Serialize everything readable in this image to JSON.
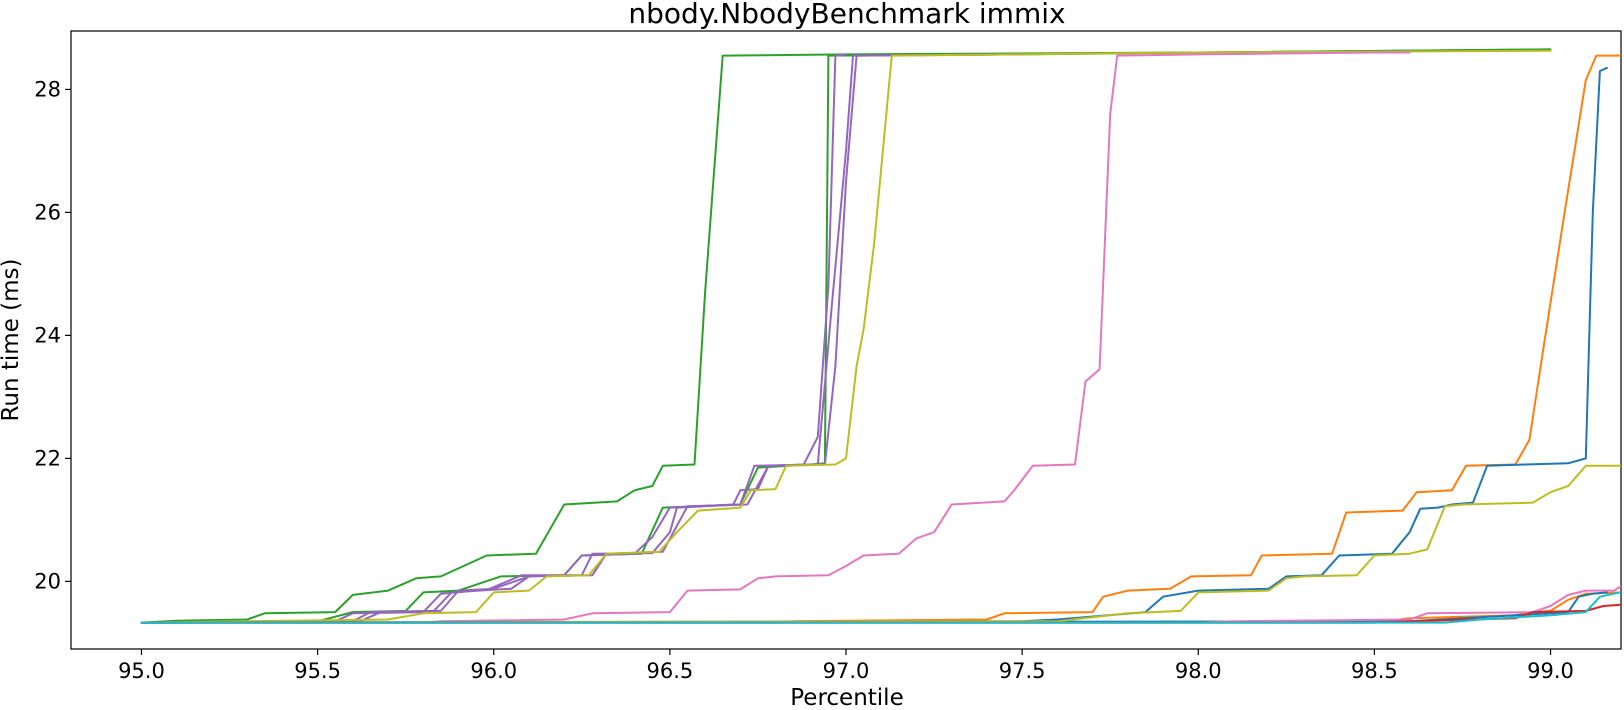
{
  "chart_data": {
    "type": "line",
    "title": "nbody.NbodyBenchmark immix",
    "xlabel": "Percentile",
    "ylabel": "Run time (ms)",
    "xlim": [
      94.8,
      99.2
    ],
    "ylim": [
      18.9,
      28.95
    ],
    "xticks": [
      95.0,
      95.5,
      96.0,
      96.5,
      97.0,
      97.5,
      98.0,
      98.5,
      99.0
    ],
    "xtick_labels": [
      "95.0",
      "95.5",
      "96.0",
      "96.5",
      "97.0",
      "97.5",
      "98.0",
      "98.5",
      "99.0"
    ],
    "yticks": [
      20,
      22,
      24,
      26,
      28
    ],
    "ytick_labels": [
      "20",
      "22",
      "24",
      "26",
      "28"
    ],
    "grid": false,
    "legend": "none",
    "series": [
      {
        "color": "#2ca02c",
        "points": [
          [
            95.0,
            19.33
          ],
          [
            95.1,
            19.36
          ],
          [
            95.3,
            19.38
          ],
          [
            95.35,
            19.48
          ],
          [
            95.55,
            19.5
          ],
          [
            95.6,
            19.78
          ],
          [
            95.7,
            19.85
          ],
          [
            95.78,
            20.05
          ],
          [
            95.85,
            20.08
          ],
          [
            95.98,
            20.42
          ],
          [
            96.12,
            20.45
          ],
          [
            96.15,
            20.75
          ],
          [
            96.2,
            21.25
          ],
          [
            96.35,
            21.3
          ],
          [
            96.4,
            21.48
          ],
          [
            96.45,
            21.55
          ],
          [
            96.48,
            21.88
          ],
          [
            96.57,
            21.9
          ],
          [
            96.6,
            24.7
          ],
          [
            96.65,
            28.55
          ],
          [
            97.0,
            28.57
          ],
          [
            98.0,
            28.6
          ],
          [
            99.0,
            28.65
          ]
        ]
      },
      {
        "color": "#2ca02c",
        "points": [
          [
            95.0,
            19.33
          ],
          [
            95.5,
            19.35
          ],
          [
            95.6,
            19.5
          ],
          [
            95.75,
            19.52
          ],
          [
            95.8,
            19.82
          ],
          [
            95.9,
            19.85
          ],
          [
            96.02,
            20.08
          ],
          [
            96.2,
            20.1
          ],
          [
            96.25,
            20.42
          ],
          [
            96.42,
            20.45
          ],
          [
            96.48,
            21.2
          ],
          [
            96.7,
            21.25
          ],
          [
            96.75,
            21.85
          ],
          [
            96.9,
            21.9
          ],
          [
            96.94,
            21.92
          ],
          [
            96.95,
            28.55
          ],
          [
            97.5,
            28.57
          ],
          [
            98.0,
            28.6
          ],
          [
            99.0,
            28.65
          ]
        ]
      },
      {
        "color": "#9467bd",
        "points": [
          [
            95.0,
            19.33
          ],
          [
            95.55,
            19.35
          ],
          [
            95.6,
            19.48
          ],
          [
            95.8,
            19.5
          ],
          [
            95.85,
            19.8
          ],
          [
            95.95,
            19.85
          ],
          [
            96.05,
            19.88
          ],
          [
            96.1,
            20.08
          ],
          [
            96.2,
            20.1
          ],
          [
            96.25,
            20.42
          ],
          [
            96.4,
            20.45
          ],
          [
            96.45,
            20.72
          ],
          [
            96.5,
            21.2
          ],
          [
            96.68,
            21.25
          ],
          [
            96.7,
            21.48
          ],
          [
            96.75,
            21.5
          ],
          [
            96.78,
            21.88
          ],
          [
            96.88,
            21.9
          ],
          [
            96.92,
            22.35
          ],
          [
            96.95,
            24.8
          ],
          [
            96.97,
            28.55
          ],
          [
            97.0,
            28.57
          ]
        ]
      },
      {
        "color": "#9467bd",
        "points": [
          [
            95.0,
            19.33
          ],
          [
            95.6,
            19.35
          ],
          [
            95.65,
            19.5
          ],
          [
            95.83,
            19.52
          ],
          [
            95.88,
            19.82
          ],
          [
            95.98,
            19.86
          ],
          [
            96.08,
            20.1
          ],
          [
            96.25,
            20.1
          ],
          [
            96.28,
            20.45
          ],
          [
            96.45,
            20.46
          ],
          [
            96.5,
            20.8
          ],
          [
            96.52,
            21.2
          ],
          [
            96.7,
            21.25
          ],
          [
            96.74,
            21.88
          ],
          [
            96.92,
            21.9
          ],
          [
            96.96,
            24.5
          ],
          [
            97.0,
            27.0
          ],
          [
            97.02,
            28.55
          ],
          [
            97.5,
            28.57
          ]
        ]
      },
      {
        "color": "#9467bd",
        "points": [
          [
            95.0,
            19.33
          ],
          [
            95.62,
            19.35
          ],
          [
            95.68,
            19.5
          ],
          [
            95.85,
            19.52
          ],
          [
            95.9,
            19.85
          ],
          [
            96.0,
            19.88
          ],
          [
            96.1,
            20.08
          ],
          [
            96.28,
            20.1
          ],
          [
            96.32,
            20.45
          ],
          [
            96.48,
            20.48
          ],
          [
            96.55,
            21.22
          ],
          [
            96.72,
            21.25
          ],
          [
            96.78,
            21.88
          ],
          [
            96.94,
            21.9
          ],
          [
            96.97,
            23.5
          ],
          [
            97.0,
            26.5
          ],
          [
            97.03,
            28.55
          ],
          [
            97.5,
            28.57
          ]
        ]
      },
      {
        "color": "#bcbd22",
        "points": [
          [
            95.0,
            19.33
          ],
          [
            95.7,
            19.38
          ],
          [
            95.8,
            19.48
          ],
          [
            95.95,
            19.5
          ],
          [
            96.0,
            19.82
          ],
          [
            96.1,
            19.85
          ],
          [
            96.15,
            20.08
          ],
          [
            96.27,
            20.1
          ],
          [
            96.32,
            20.45
          ],
          [
            96.47,
            20.48
          ],
          [
            96.52,
            20.8
          ],
          [
            96.58,
            21.15
          ],
          [
            96.7,
            21.2
          ],
          [
            96.73,
            21.48
          ],
          [
            96.8,
            21.5
          ],
          [
            96.83,
            21.88
          ],
          [
            96.97,
            21.9
          ],
          [
            97.0,
            22.0
          ],
          [
            97.03,
            23.5
          ],
          [
            97.05,
            24.1
          ],
          [
            97.08,
            25.5
          ],
          [
            97.13,
            28.55
          ],
          [
            98.0,
            28.6
          ],
          [
            99.0,
            28.63
          ]
        ]
      },
      {
        "color": "#e377c2",
        "points": [
          [
            95.0,
            19.33
          ],
          [
            95.8,
            19.33
          ],
          [
            95.85,
            19.35
          ],
          [
            96.2,
            19.38
          ],
          [
            96.28,
            19.48
          ],
          [
            96.5,
            19.5
          ],
          [
            96.55,
            19.85
          ],
          [
            96.7,
            19.87
          ],
          [
            96.75,
            20.05
          ],
          [
            96.8,
            20.08
          ],
          [
            96.95,
            20.1
          ],
          [
            97.0,
            20.25
          ],
          [
            97.05,
            20.42
          ],
          [
            97.15,
            20.45
          ],
          [
            97.2,
            20.7
          ],
          [
            97.25,
            20.8
          ],
          [
            97.3,
            21.25
          ],
          [
            97.45,
            21.3
          ],
          [
            97.48,
            21.5
          ],
          [
            97.53,
            21.88
          ],
          [
            97.65,
            21.9
          ],
          [
            97.68,
            23.25
          ],
          [
            97.72,
            23.45
          ],
          [
            97.75,
            27.6
          ],
          [
            97.77,
            28.55
          ],
          [
            98.0,
            28.57
          ],
          [
            98.5,
            28.6
          ],
          [
            98.6,
            28.6
          ]
        ]
      },
      {
        "color": "#ff7f0e",
        "points": [
          [
            95.0,
            19.33
          ],
          [
            96.8,
            19.33
          ],
          [
            96.85,
            19.35
          ],
          [
            97.4,
            19.38
          ],
          [
            97.45,
            19.48
          ],
          [
            97.7,
            19.5
          ],
          [
            97.73,
            19.75
          ],
          [
            97.8,
            19.85
          ],
          [
            97.92,
            19.88
          ],
          [
            97.98,
            20.08
          ],
          [
            98.15,
            20.1
          ],
          [
            98.18,
            20.42
          ],
          [
            98.38,
            20.45
          ],
          [
            98.42,
            21.12
          ],
          [
            98.58,
            21.15
          ],
          [
            98.62,
            21.45
          ],
          [
            98.72,
            21.48
          ],
          [
            98.76,
            21.88
          ],
          [
            98.9,
            21.9
          ],
          [
            98.94,
            22.3
          ],
          [
            98.98,
            23.8
          ],
          [
            99.04,
            26.0
          ],
          [
            99.1,
            28.15
          ],
          [
            99.13,
            28.55
          ],
          [
            99.2,
            28.55
          ]
        ]
      },
      {
        "color": "#ff7f0e",
        "points": [
          [
            95.0,
            19.33
          ],
          [
            98.5,
            19.33
          ],
          [
            98.6,
            19.4
          ],
          [
            98.9,
            19.45
          ],
          [
            98.95,
            19.5
          ],
          [
            99.0,
            19.52
          ],
          [
            99.05,
            19.7
          ],
          [
            99.1,
            19.8
          ],
          [
            99.2,
            19.82
          ]
        ]
      },
      {
        "color": "#1f77b4",
        "points": [
          [
            95.0,
            19.33
          ],
          [
            97.5,
            19.35
          ],
          [
            97.6,
            19.38
          ],
          [
            97.85,
            19.5
          ],
          [
            97.9,
            19.75
          ],
          [
            98.0,
            19.85
          ],
          [
            98.2,
            19.88
          ],
          [
            98.25,
            20.08
          ],
          [
            98.35,
            20.1
          ],
          [
            98.4,
            20.42
          ],
          [
            98.55,
            20.45
          ],
          [
            98.6,
            20.8
          ],
          [
            98.63,
            21.18
          ],
          [
            98.68,
            21.2
          ],
          [
            98.72,
            21.25
          ],
          [
            98.78,
            21.28
          ],
          [
            98.82,
            21.88
          ],
          [
            98.93,
            21.9
          ],
          [
            99.05,
            21.92
          ],
          [
            99.1,
            22.0
          ],
          [
            99.12,
            26.0
          ],
          [
            99.14,
            28.3
          ],
          [
            99.16,
            28.35
          ]
        ]
      },
      {
        "color": "#1f77b4",
        "points": [
          [
            95.0,
            19.33
          ],
          [
            98.6,
            19.35
          ],
          [
            98.9,
            19.45
          ],
          [
            99.05,
            19.5
          ],
          [
            99.08,
            19.75
          ],
          [
            99.12,
            19.8
          ],
          [
            99.16,
            19.82
          ]
        ]
      },
      {
        "color": "#bcbd22",
        "points": [
          [
            95.0,
            19.33
          ],
          [
            97.6,
            19.35
          ],
          [
            97.8,
            19.48
          ],
          [
            97.95,
            19.52
          ],
          [
            98.0,
            19.82
          ],
          [
            98.2,
            19.85
          ],
          [
            98.25,
            20.05
          ],
          [
            98.3,
            20.08
          ],
          [
            98.45,
            20.1
          ],
          [
            98.5,
            20.42
          ],
          [
            98.6,
            20.45
          ],
          [
            98.65,
            20.52
          ],
          [
            98.7,
            21.22
          ],
          [
            98.75,
            21.25
          ],
          [
            98.95,
            21.28
          ],
          [
            99.0,
            21.45
          ],
          [
            99.05,
            21.55
          ],
          [
            99.1,
            21.88
          ],
          [
            99.2,
            21.88
          ]
        ]
      },
      {
        "color": "#e377c2",
        "points": [
          [
            95.0,
            19.33
          ],
          [
            98.0,
            19.33
          ],
          [
            98.1,
            19.35
          ],
          [
            98.6,
            19.38
          ],
          [
            98.65,
            19.48
          ],
          [
            98.95,
            19.5
          ],
          [
            99.0,
            19.6
          ],
          [
            99.05,
            19.78
          ],
          [
            99.1,
            19.85
          ],
          [
            99.18,
            19.85
          ],
          [
            99.2,
            19.92
          ]
        ]
      },
      {
        "color": "#d62728",
        "points": [
          [
            95.0,
            19.33
          ],
          [
            98.5,
            19.33
          ],
          [
            98.6,
            19.35
          ],
          [
            98.9,
            19.4
          ],
          [
            98.95,
            19.5
          ],
          [
            99.1,
            19.52
          ],
          [
            99.15,
            19.6
          ],
          [
            99.2,
            19.62
          ]
        ]
      },
      {
        "color": "#17becf",
        "points": [
          [
            95.0,
            19.33
          ],
          [
            98.7,
            19.33
          ],
          [
            98.8,
            19.38
          ],
          [
            99.0,
            19.45
          ],
          [
            99.1,
            19.5
          ],
          [
            99.14,
            19.75
          ],
          [
            99.18,
            19.8
          ],
          [
            99.2,
            19.82
          ]
        ]
      }
    ]
  }
}
